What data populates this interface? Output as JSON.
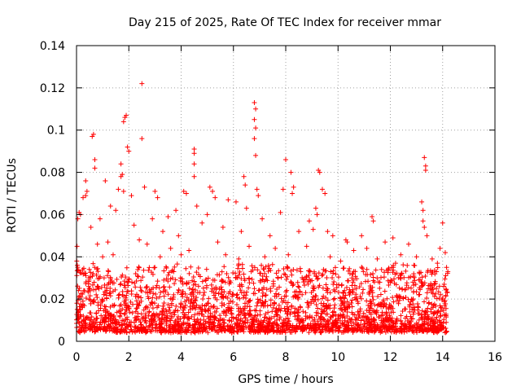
{
  "chart_data": {
    "type": "scatter",
    "title": "Day 215 of 2025, Rate Of TEC Index for receiver mmar",
    "xlabel": "GPS time / hours",
    "ylabel": "ROTI / TECUs",
    "xlim": [
      0,
      16
    ],
    "ylim": [
      0,
      0.14
    ],
    "xticks": [
      "0",
      "2",
      "4",
      "6",
      "8",
      "10",
      "12",
      "14",
      "16"
    ],
    "yticks": [
      "0",
      "0.02",
      "0.04",
      "0.06",
      "0.08",
      "0.1",
      "0.12",
      "0.14"
    ],
    "grid": true,
    "marker": "+",
    "color": "#ff0000",
    "data_extent_hours": [
      0,
      14.2
    ],
    "series": [
      {
        "name": "ROTI",
        "points": [
          [
            2.5,
            0.122
          ],
          [
            0.65,
            0.098
          ],
          [
            0.6,
            0.097
          ],
          [
            1.9,
            0.107
          ],
          [
            1.85,
            0.106
          ],
          [
            1.8,
            0.104
          ],
          [
            6.8,
            0.113
          ],
          [
            6.85,
            0.11
          ],
          [
            6.8,
            0.105
          ],
          [
            6.85,
            0.101
          ],
          [
            6.8,
            0.096
          ],
          [
            2.5,
            0.096
          ],
          [
            1.95,
            0.092
          ],
          [
            2.0,
            0.09
          ],
          [
            4.5,
            0.091
          ],
          [
            4.5,
            0.089
          ],
          [
            6.85,
            0.088
          ],
          [
            8.0,
            0.086
          ],
          [
            0.7,
            0.086
          ],
          [
            1.7,
            0.084
          ],
          [
            4.5,
            0.084
          ],
          [
            13.3,
            0.087
          ],
          [
            13.35,
            0.083
          ],
          [
            13.35,
            0.081
          ],
          [
            0.7,
            0.082
          ],
          [
            8.2,
            0.08
          ],
          [
            9.25,
            0.081
          ],
          [
            9.3,
            0.08
          ],
          [
            1.75,
            0.079
          ],
          [
            1.7,
            0.078
          ],
          [
            4.5,
            0.078
          ],
          [
            0.35,
            0.076
          ],
          [
            6.4,
            0.078
          ],
          [
            6.45,
            0.074
          ],
          [
            2.6,
            0.073
          ],
          [
            1.1,
            0.076
          ],
          [
            1.6,
            0.072
          ],
          [
            1.8,
            0.071
          ],
          [
            2.1,
            0.069
          ],
          [
            0.4,
            0.071
          ],
          [
            0.35,
            0.069
          ],
          [
            0.25,
            0.068
          ],
          [
            7.9,
            0.072
          ],
          [
            8.3,
            0.073
          ],
          [
            8.25,
            0.07
          ],
          [
            9.4,
            0.072
          ],
          [
            9.5,
            0.07
          ],
          [
            5.1,
            0.073
          ],
          [
            5.2,
            0.071
          ],
          [
            5.3,
            0.068
          ],
          [
            4.1,
            0.071
          ],
          [
            4.2,
            0.07
          ],
          [
            6.9,
            0.072
          ],
          [
            6.95,
            0.069
          ],
          [
            3.0,
            0.071
          ],
          [
            3.1,
            0.068
          ],
          [
            5.8,
            0.067
          ],
          [
            6.1,
            0.066
          ],
          [
            13.2,
            0.066
          ],
          [
            13.25,
            0.062
          ],
          [
            0.15,
            0.06
          ],
          [
            0.1,
            0.061
          ],
          [
            0.05,
            0.058
          ],
          [
            1.3,
            0.064
          ],
          [
            1.5,
            0.062
          ],
          [
            3.8,
            0.062
          ],
          [
            4.6,
            0.064
          ],
          [
            5.0,
            0.06
          ],
          [
            6.5,
            0.063
          ],
          [
            7.8,
            0.061
          ],
          [
            9.15,
            0.063
          ],
          [
            9.2,
            0.06
          ],
          [
            11.3,
            0.059
          ],
          [
            11.35,
            0.057
          ],
          [
            14.0,
            0.056
          ],
          [
            13.25,
            0.057
          ],
          [
            13.3,
            0.054
          ],
          [
            0.9,
            0.058
          ],
          [
            2.9,
            0.058
          ],
          [
            3.5,
            0.059
          ],
          [
            7.1,
            0.058
          ],
          [
            8.9,
            0.057
          ],
          [
            9.6,
            0.052
          ],
          [
            9.8,
            0.05
          ],
          [
            10.3,
            0.048
          ],
          [
            10.35,
            0.047
          ],
          [
            10.9,
            0.05
          ],
          [
            12.1,
            0.049
          ],
          [
            13.4,
            0.05
          ],
          [
            0.55,
            0.054
          ],
          [
            2.2,
            0.055
          ],
          [
            3.3,
            0.052
          ],
          [
            3.9,
            0.05
          ],
          [
            4.8,
            0.056
          ],
          [
            5.6,
            0.054
          ],
          [
            6.3,
            0.052
          ],
          [
            7.4,
            0.05
          ],
          [
            8.5,
            0.052
          ],
          [
            9.05,
            0.053
          ],
          [
            11.8,
            0.047
          ],
          [
            12.7,
            0.046
          ],
          [
            13.9,
            0.044
          ],
          [
            14.1,
            0.042
          ],
          [
            0.8,
            0.046
          ],
          [
            1.2,
            0.047
          ],
          [
            2.4,
            0.048
          ],
          [
            2.7,
            0.046
          ],
          [
            3.6,
            0.044
          ],
          [
            4.3,
            0.043
          ],
          [
            5.4,
            0.047
          ],
          [
            6.6,
            0.045
          ],
          [
            7.6,
            0.044
          ],
          [
            8.8,
            0.045
          ],
          [
            10.6,
            0.043
          ],
          [
            11.1,
            0.044
          ],
          [
            12.4,
            0.041
          ],
          [
            13.0,
            0.04
          ],
          [
            13.6,
            0.039
          ],
          [
            0.02,
            0.045
          ],
          [
            0.01,
            0.038
          ],
          [
            0.03,
            0.036
          ],
          [
            1.0,
            0.04
          ],
          [
            1.4,
            0.041
          ],
          [
            3.2,
            0.04
          ],
          [
            4.0,
            0.041
          ],
          [
            5.7,
            0.041
          ],
          [
            6.2,
            0.039
          ],
          [
            7.2,
            0.04
          ],
          [
            8.1,
            0.041
          ],
          [
            9.7,
            0.04
          ],
          [
            10.1,
            0.038
          ],
          [
            11.5,
            0.039
          ],
          [
            12.2,
            0.037
          ],
          [
            12.9,
            0.036
          ],
          [
            13.8,
            0.037
          ],
          [
            14.15,
            0.035
          ],
          [
            14.2,
            0.033
          ]
        ],
        "dense_band": {
          "x_range_hours": [
            0,
            14.2
          ],
          "typical_range": [
            0.005,
            0.035
          ],
          "median": 0.012
        }
      }
    ]
  }
}
